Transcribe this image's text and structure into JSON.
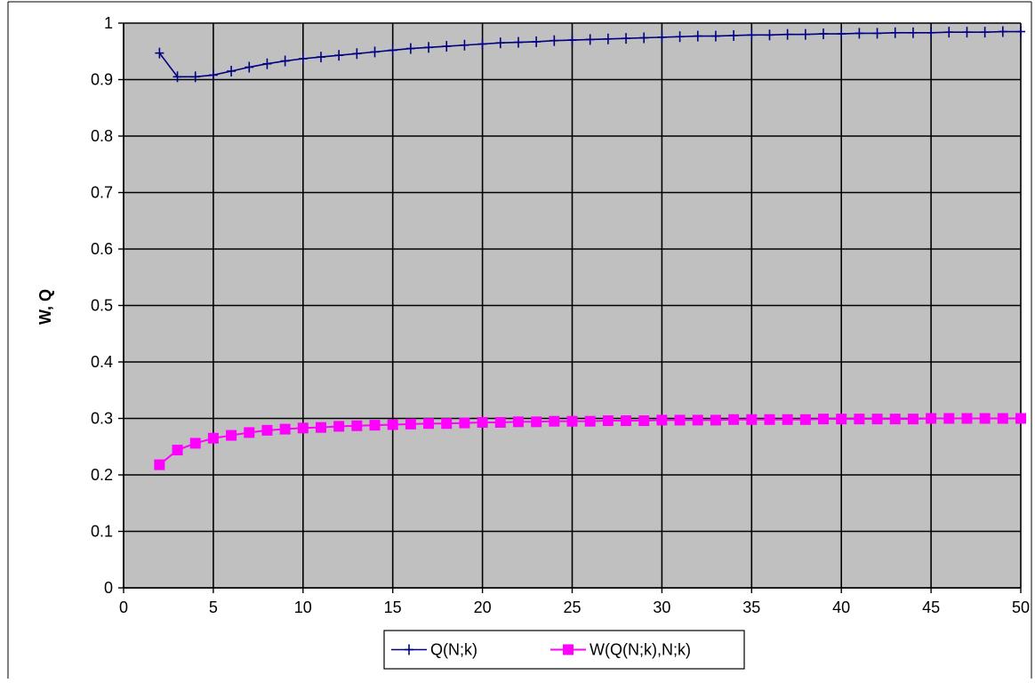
{
  "chart_data": {
    "type": "line",
    "title": "",
    "xlabel": "",
    "ylabel": "W, Q",
    "xlim": [
      0,
      50
    ],
    "ylim": [
      0,
      1
    ],
    "x_ticks": [
      0,
      5,
      10,
      15,
      20,
      25,
      30,
      35,
      40,
      45,
      50
    ],
    "y_ticks": [
      0,
      0.1,
      0.2,
      0.3,
      0.4,
      0.5,
      0.6,
      0.7,
      0.8,
      0.9,
      1
    ],
    "x_tick_labels": [
      "0",
      "5",
      "10",
      "15",
      "20",
      "25",
      "30",
      "35",
      "40",
      "45",
      "50"
    ],
    "y_tick_labels": [
      "0",
      "0.1",
      "0.2",
      "0.3",
      "0.4",
      "0.5",
      "0.6",
      "0.7",
      "0.8",
      "0.9",
      "1"
    ],
    "grid": true,
    "plot_background": "#c0c0c0",
    "legend_position": "bottom-center",
    "series": [
      {
        "name": "Q(N;k)",
        "color": "#000080",
        "marker": "plus",
        "x": [
          2,
          3,
          4,
          5,
          6,
          7,
          8,
          9,
          10,
          11,
          12,
          13,
          14,
          15,
          16,
          17,
          18,
          19,
          20,
          21,
          22,
          23,
          24,
          25,
          26,
          27,
          28,
          29,
          30,
          31,
          32,
          33,
          34,
          35,
          36,
          37,
          38,
          39,
          40,
          41,
          42,
          43,
          44,
          45,
          46,
          47,
          48,
          49,
          50
        ],
        "values": [
          0.947,
          0.905,
          0.905,
          0.908,
          0.915,
          0.922,
          0.928,
          0.933,
          0.937,
          0.94,
          0.943,
          0.946,
          0.949,
          0.952,
          0.955,
          0.957,
          0.959,
          0.961,
          0.963,
          0.965,
          0.966,
          0.967,
          0.969,
          0.97,
          0.971,
          0.972,
          0.973,
          0.974,
          0.975,
          0.976,
          0.977,
          0.977,
          0.978,
          0.979,
          0.979,
          0.98,
          0.98,
          0.981,
          0.981,
          0.982,
          0.982,
          0.983,
          0.983,
          0.983,
          0.984,
          0.984,
          0.984,
          0.985,
          0.985
        ]
      },
      {
        "name": "W(Q(N;k),N;k)",
        "color": "#ff00ff",
        "marker": "square",
        "x": [
          2,
          3,
          4,
          5,
          6,
          7,
          8,
          9,
          10,
          11,
          12,
          13,
          14,
          15,
          16,
          17,
          18,
          19,
          20,
          21,
          22,
          23,
          24,
          25,
          26,
          27,
          28,
          29,
          30,
          31,
          32,
          33,
          34,
          35,
          36,
          37,
          38,
          39,
          40,
          41,
          42,
          43,
          44,
          45,
          46,
          47,
          48,
          49,
          50
        ],
        "values": [
          0.218,
          0.244,
          0.256,
          0.265,
          0.27,
          0.275,
          0.279,
          0.281,
          0.283,
          0.284,
          0.286,
          0.287,
          0.288,
          0.289,
          0.29,
          0.291,
          0.291,
          0.292,
          0.293,
          0.293,
          0.294,
          0.294,
          0.295,
          0.295,
          0.295,
          0.296,
          0.296,
          0.296,
          0.297,
          0.297,
          0.297,
          0.297,
          0.298,
          0.298,
          0.298,
          0.298,
          0.298,
          0.299,
          0.299,
          0.299,
          0.299,
          0.299,
          0.299,
          0.3,
          0.3,
          0.3,
          0.3,
          0.3,
          0.3
        ]
      }
    ]
  }
}
